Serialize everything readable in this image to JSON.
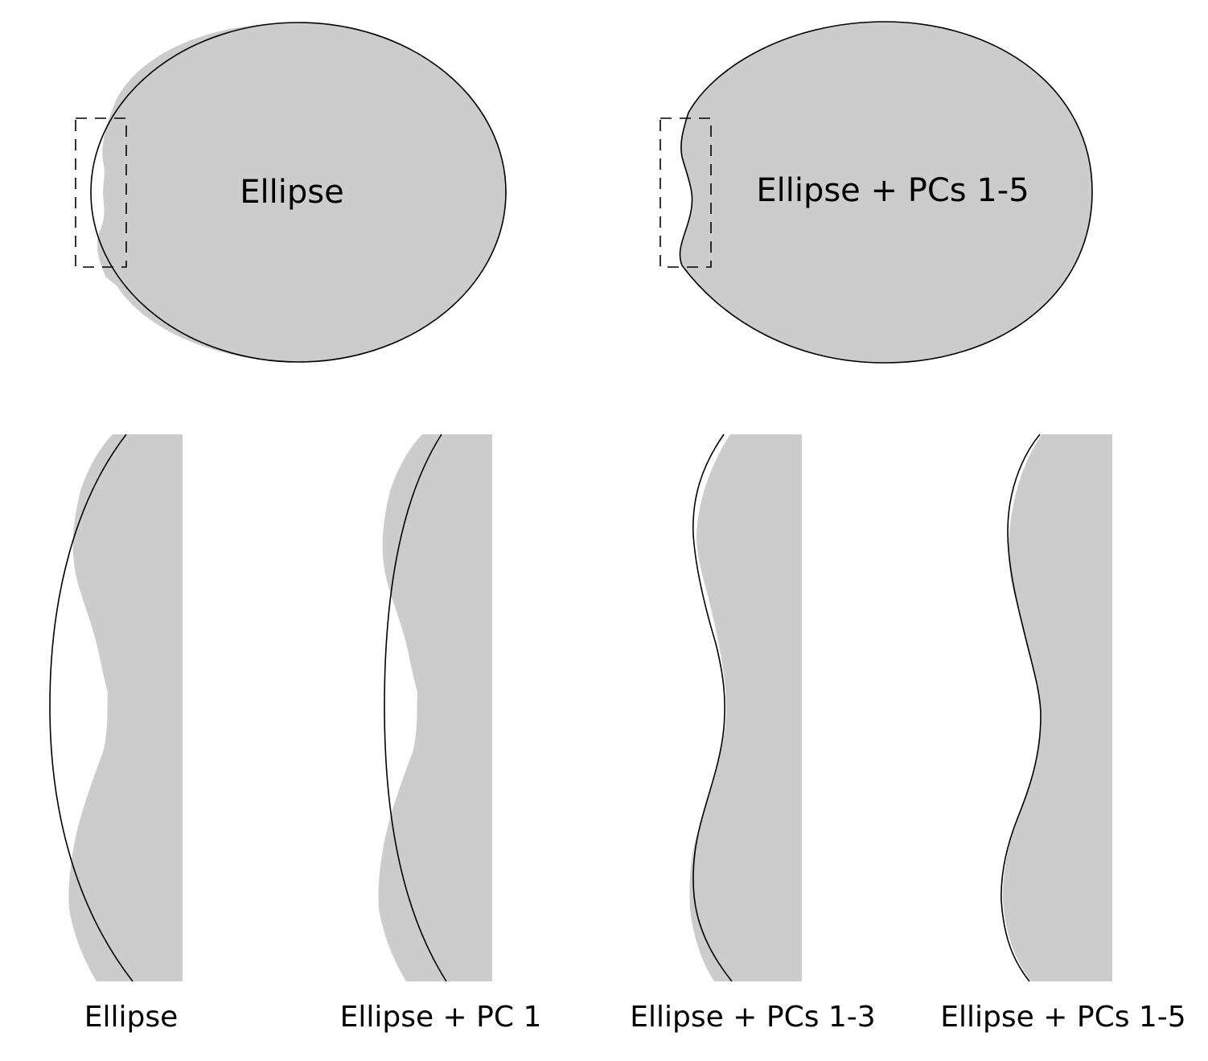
{
  "top_panels": [
    {
      "id": "ellipse",
      "label": "Ellipse"
    },
    {
      "id": "ellipse-pcs-1-5",
      "label": "Ellipse + PCs 1-5"
    }
  ],
  "zoom_panels": [
    {
      "id": "ellipse",
      "label": "Ellipse"
    },
    {
      "id": "ellipse-pc-1",
      "label": "Ellipse + PC 1"
    },
    {
      "id": "ellipse-pcs-1-3",
      "label": "Ellipse + PCs 1-3"
    },
    {
      "id": "ellipse-pcs-1-5",
      "label": "Ellipse + PCs 1-5"
    }
  ],
  "colors": {
    "shape_fill": "#cccccc",
    "outline": "#000000",
    "background": "#ffffff"
  }
}
